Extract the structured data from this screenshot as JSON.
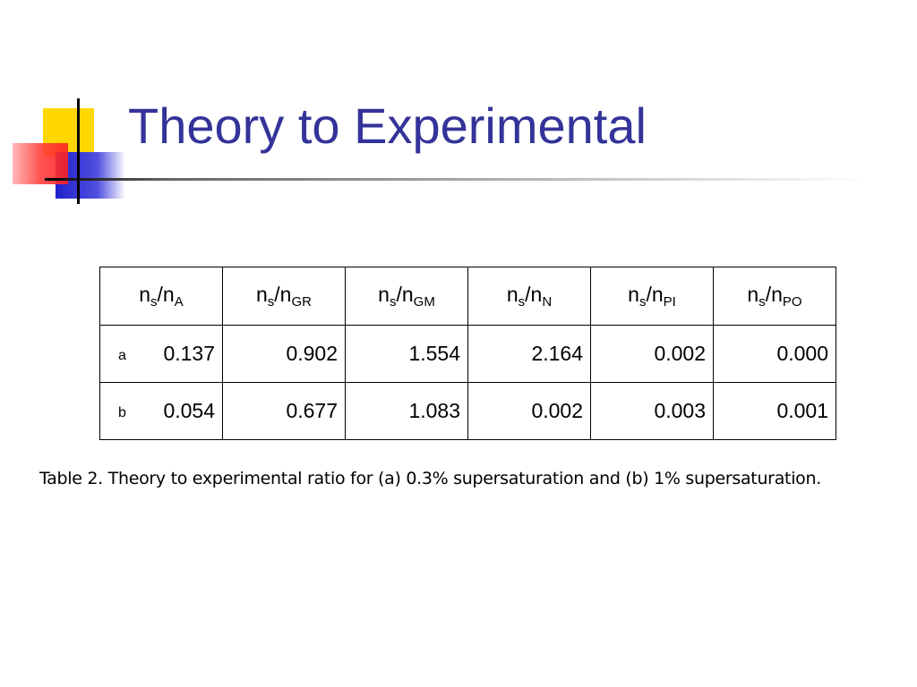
{
  "title": "Theory to Experimental",
  "table": {
    "headers": [
      [
        "n",
        "s",
        "/n",
        "A"
      ],
      [
        "n",
        "s",
        "/n",
        "GR"
      ],
      [
        "n",
        "s",
        "/n",
        "GM"
      ],
      [
        "n",
        "s",
        "/n",
        "N"
      ],
      [
        "n",
        "s",
        "/n",
        "PI"
      ],
      [
        "n",
        "s",
        "/n",
        "PO"
      ]
    ],
    "rows": [
      {
        "label": "a",
        "cells": [
          "0.137",
          "0.902",
          "1.554",
          "2.164",
          "0.002",
          "0.000"
        ]
      },
      {
        "label": "b",
        "cells": [
          "0.054",
          "0.677",
          "1.083",
          "0.002",
          "0.003",
          "0.001"
        ]
      }
    ]
  },
  "caption": "Table 2. Theory to experimental ratio for (a) 0.3% supersaturation and (b) 1% supersaturation."
}
